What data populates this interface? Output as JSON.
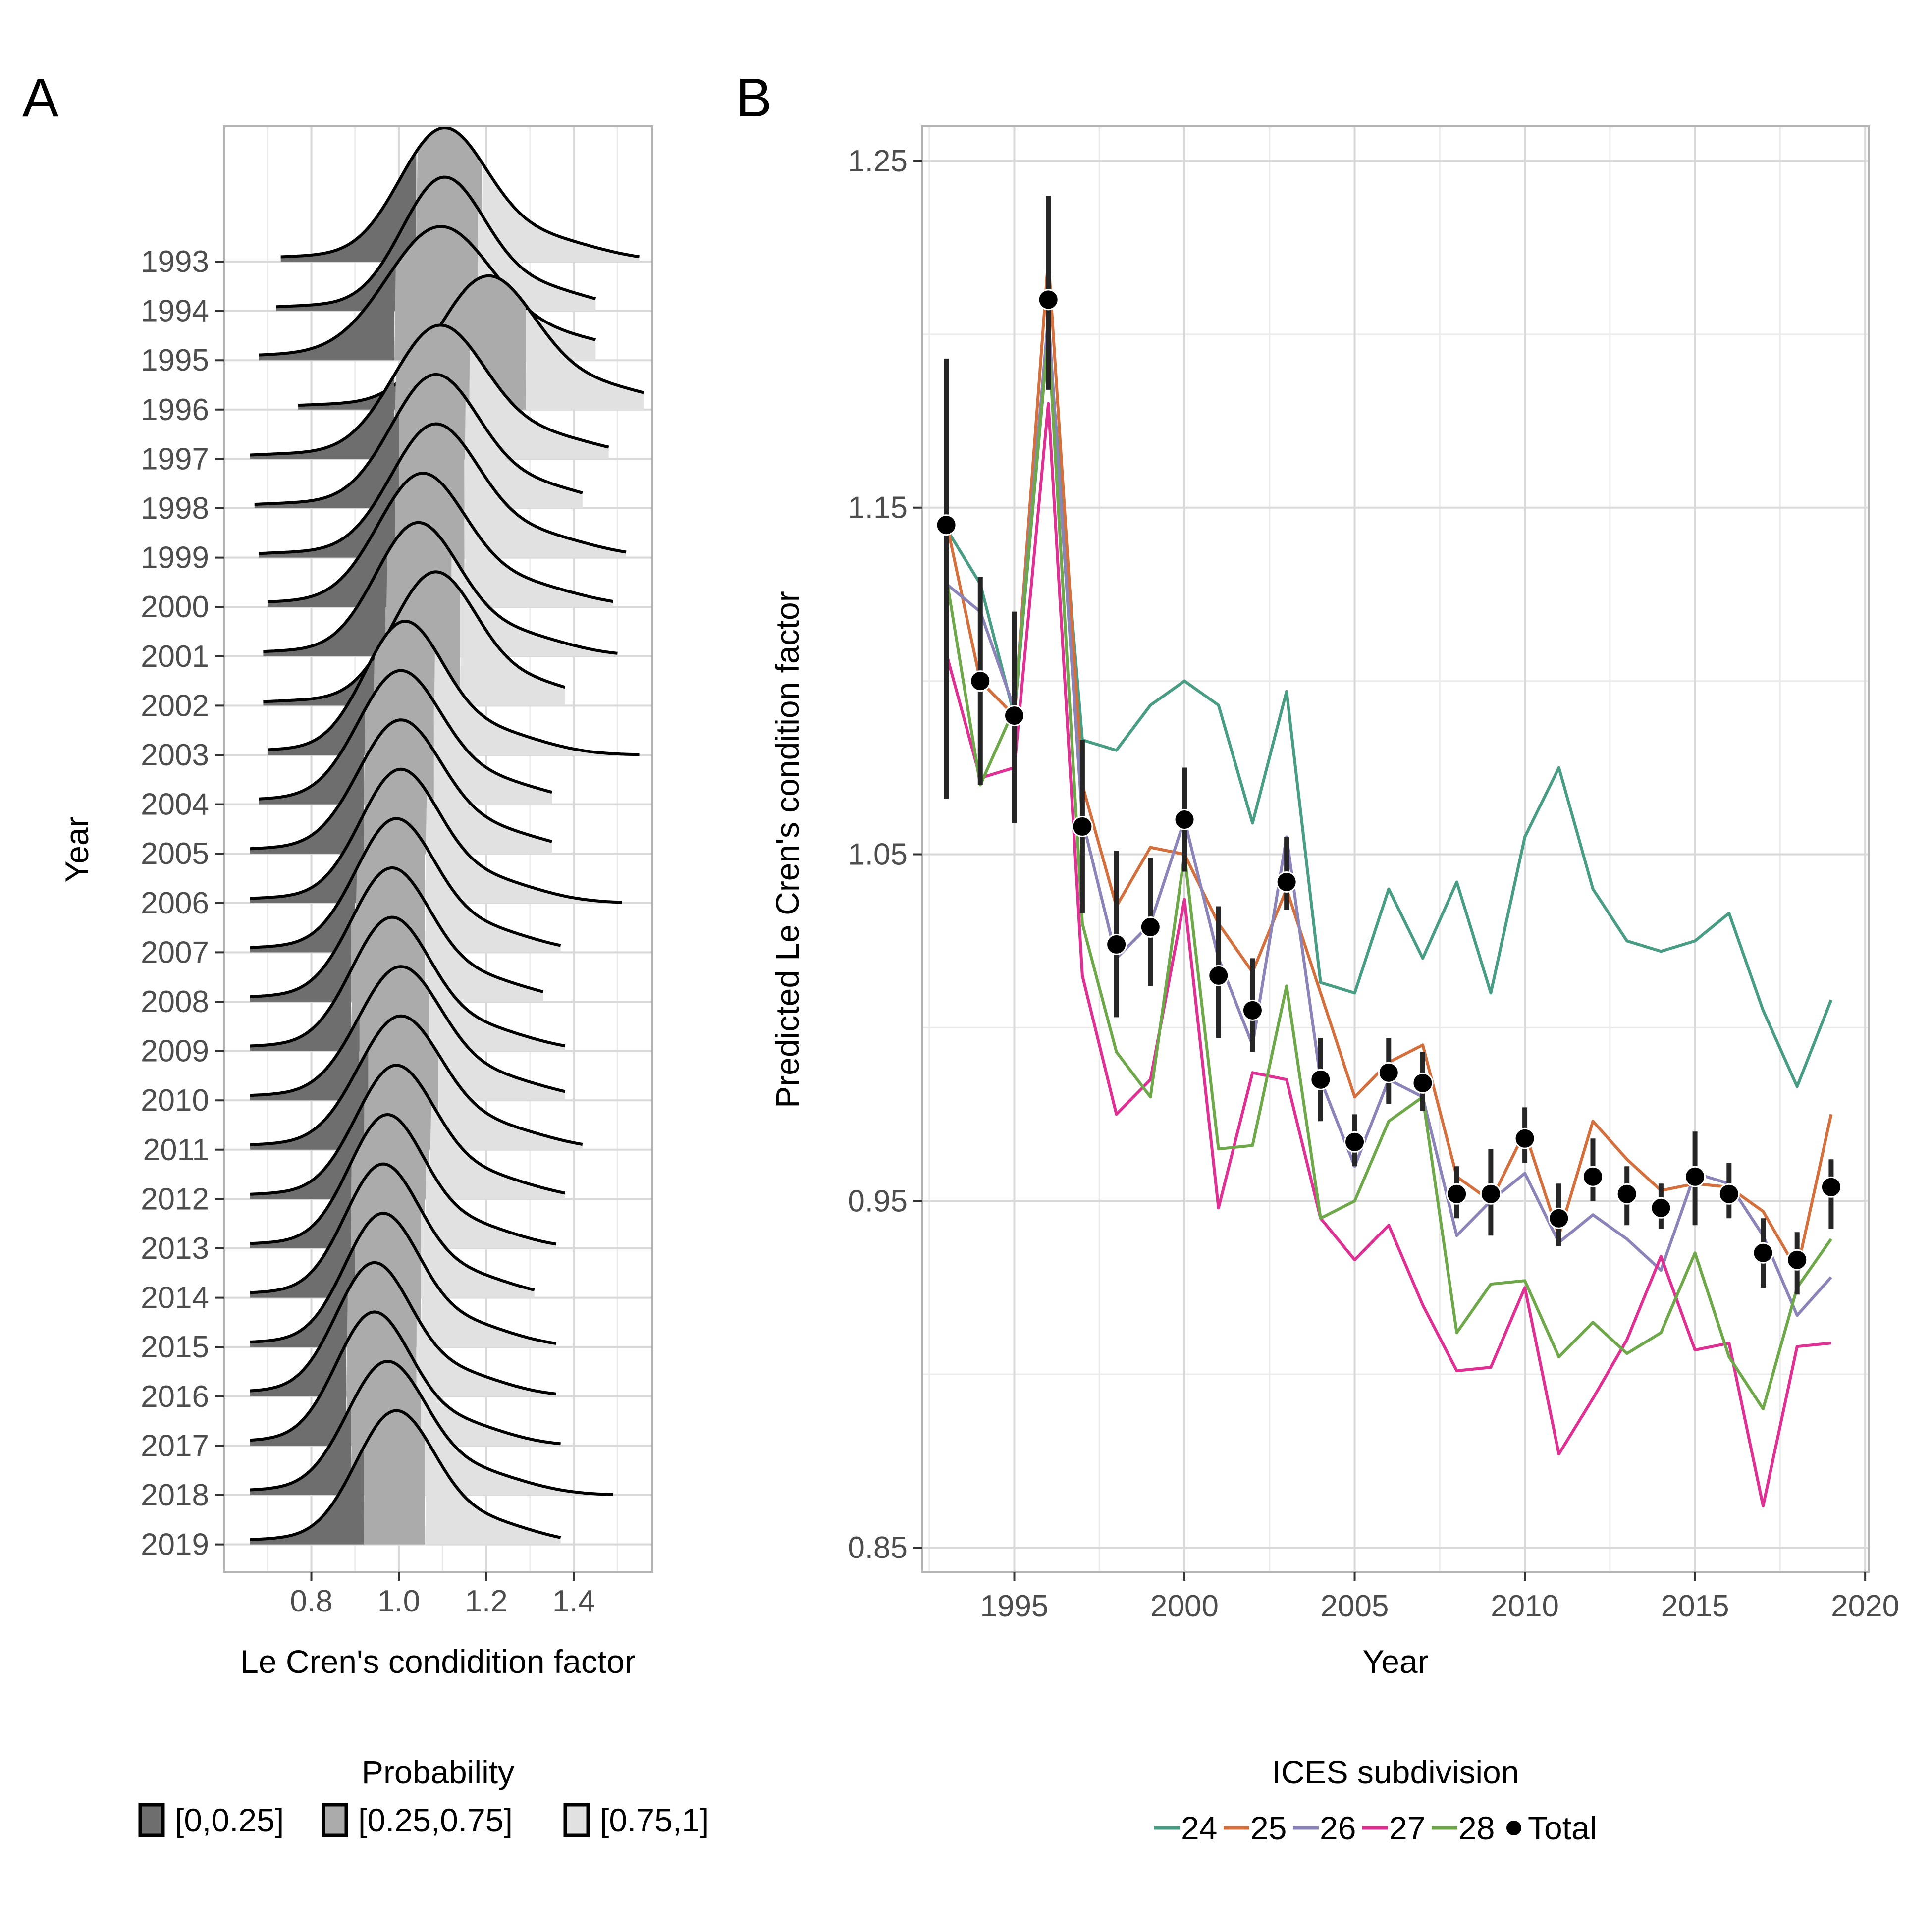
{
  "panels": [
    {
      "letter": "A"
    },
    {
      "letter": "B"
    }
  ],
  "chart_data": [
    {
      "type": "ridgeline",
      "panel_label": "A",
      "xlabel": "Le Cren's condidition factor",
      "ylabel": "Year",
      "xlim": [
        0.6,
        1.58
      ],
      "x_ticks": [
        0.8,
        1.0,
        1.2,
        1.4
      ],
      "x_tick_labels": [
        "0.8",
        "1.0",
        "1.2",
        "1.4"
      ],
      "years": [
        1993,
        1994,
        1995,
        1996,
        1997,
        1998,
        1999,
        2000,
        2001,
        2002,
        2003,
        2004,
        2005,
        2006,
        2007,
        2008,
        2009,
        2010,
        2011,
        2012,
        2013,
        2014,
        2015,
        2016,
        2017,
        2018,
        2019
      ],
      "year_labels": [
        "1993",
        "1994",
        "1995",
        "1996",
        "1997",
        "1998",
        "1999",
        "2000",
        "2001",
        "2002",
        "2003",
        "2004",
        "2005",
        "2006",
        "2007",
        "2008",
        "2009",
        "2010",
        "2011",
        "2012",
        "2013",
        "2014",
        "2015",
        "2016",
        "2017",
        "2018",
        "2019"
      ],
      "distributions": [
        {
          "min": 0.73,
          "max": 1.55,
          "mode": 1.1,
          "q25": 1.04,
          "q75": 1.19,
          "width": 0.1
        },
        {
          "min": 0.72,
          "max": 1.45,
          "mode": 1.1,
          "q25": 1.04,
          "q75": 1.18,
          "width": 0.095
        },
        {
          "min": 0.68,
          "max": 1.45,
          "mode": 1.09,
          "q25": 0.99,
          "q75": 1.18,
          "width": 0.12
        },
        {
          "min": 0.77,
          "max": 1.56,
          "mode": 1.2,
          "q25": 1.09,
          "q75": 1.29,
          "width": 0.11
        },
        {
          "min": 0.66,
          "max": 1.48,
          "mode": 1.09,
          "q25": 0.99,
          "q75": 1.16,
          "width": 0.105
        },
        {
          "min": 0.67,
          "max": 1.42,
          "mode": 1.08,
          "q25": 1.0,
          "q75": 1.15,
          "width": 0.1
        },
        {
          "min": 0.68,
          "max": 1.52,
          "mode": 1.08,
          "q25": 1.0,
          "q75": 1.15,
          "width": 0.1
        },
        {
          "min": 0.7,
          "max": 1.49,
          "mode": 1.05,
          "q25": 0.99,
          "q75": 1.15,
          "width": 0.1
        },
        {
          "min": 0.69,
          "max": 1.5,
          "mode": 1.04,
          "q25": 0.97,
          "q75": 1.12,
          "width": 0.095
        },
        {
          "min": 0.69,
          "max": 1.38,
          "mode": 1.08,
          "q25": 0.99,
          "q75": 1.14,
          "width": 0.095
        },
        {
          "min": 0.7,
          "max": 1.55,
          "mode": 1.01,
          "q25": 0.94,
          "q75": 1.08,
          "width": 0.09
        },
        {
          "min": 0.68,
          "max": 1.35,
          "mode": 1.0,
          "q25": 0.92,
          "q75": 1.08,
          "width": 0.095
        },
        {
          "min": 0.66,
          "max": 1.35,
          "mode": 1.0,
          "q25": 0.92,
          "q75": 1.08,
          "width": 0.095
        },
        {
          "min": 0.66,
          "max": 1.51,
          "mode": 1.0,
          "q25": 0.92,
          "q75": 1.06,
          "width": 0.09
        },
        {
          "min": 0.66,
          "max": 1.37,
          "mode": 0.99,
          "q25": 0.9,
          "q75": 1.06,
          "width": 0.09
        },
        {
          "min": 0.66,
          "max": 1.33,
          "mode": 0.98,
          "q25": 0.89,
          "q75": 1.06,
          "width": 0.09
        },
        {
          "min": 0.66,
          "max": 1.38,
          "mode": 0.98,
          "q25": 0.89,
          "q75": 1.06,
          "width": 0.09
        },
        {
          "min": 0.66,
          "max": 1.38,
          "mode": 1.0,
          "q25": 0.91,
          "q75": 1.07,
          "width": 0.095
        },
        {
          "min": 0.66,
          "max": 1.42,
          "mode": 1.0,
          "q25": 0.93,
          "q75": 1.09,
          "width": 0.095
        },
        {
          "min": 0.66,
          "max": 1.38,
          "mode": 0.99,
          "q25": 0.92,
          "q75": 1.07,
          "width": 0.09
        },
        {
          "min": 0.66,
          "max": 1.36,
          "mode": 0.97,
          "q25": 0.89,
          "q75": 1.06,
          "width": 0.085
        },
        {
          "min": 0.66,
          "max": 1.31,
          "mode": 0.96,
          "q25": 0.89,
          "q75": 1.05,
          "width": 0.085
        },
        {
          "min": 0.66,
          "max": 1.36,
          "mode": 0.96,
          "q25": 0.9,
          "q75": 1.05,
          "width": 0.085
        },
        {
          "min": 0.66,
          "max": 1.36,
          "mode": 0.94,
          "q25": 0.88,
          "q75": 1.04,
          "width": 0.085
        },
        {
          "min": 0.66,
          "max": 1.37,
          "mode": 0.94,
          "q25": 0.88,
          "q75": 1.04,
          "width": 0.085
        },
        {
          "min": 0.66,
          "max": 1.49,
          "mode": 0.97,
          "q25": 0.89,
          "q75": 1.05,
          "width": 0.09
        },
        {
          "min": 0.66,
          "max": 1.37,
          "mode": 0.99,
          "q25": 0.92,
          "q75": 1.06,
          "width": 0.09
        }
      ],
      "legend_title": "Probability",
      "legend_position": "bottom",
      "legend": [
        {
          "label": "[0,0.25]",
          "color": "#6e6e6e"
        },
        {
          "label": "[0.25,0.75]",
          "color": "#ababab"
        },
        {
          "label": "[0.75,1]",
          "color": "#e1e1e1"
        }
      ]
    },
    {
      "type": "line",
      "panel_label": "B",
      "xlabel": "Year",
      "ylabel": "Predicted Le Cren's condition factor",
      "xlim": [
        1992.3,
        2020.1
      ],
      "ylim": [
        0.843,
        1.26
      ],
      "x_ticks": [
        1995,
        2000,
        2005,
        2010,
        2015,
        2020
      ],
      "x_tick_labels": [
        "1995",
        "2000",
        "2005",
        "2010",
        "2015",
        "2020"
      ],
      "y_ticks": [
        0.85,
        0.95,
        1.05,
        1.15,
        1.25
      ],
      "y_tick_labels": [
        "0.85",
        "0.95",
        "1.05",
        "1.15",
        "1.25"
      ],
      "grid": true,
      "x": [
        1993,
        1994,
        1995,
        1996,
        1997,
        1998,
        1999,
        2000,
        2001,
        2002,
        2003,
        2004,
        2005,
        2006,
        2007,
        2008,
        2009,
        2010,
        2011,
        2012,
        2013,
        2014,
        2015,
        2016,
        2017,
        2018,
        2019
      ],
      "series": [
        {
          "name": "24",
          "color": "#4a9d85",
          "values": [
            1.144,
            1.128,
            1.09,
            1.2,
            1.083,
            1.08,
            1.093,
            1.1,
            1.093,
            1.059,
            1.097,
            1.013,
            1.01,
            1.04,
            1.02,
            1.042,
            1.01,
            1.055,
            1.075,
            1.04,
            1.025,
            1.022,
            1.025,
            1.033,
            1.005,
            0.983,
            1.008
          ]
        },
        {
          "name": "25",
          "color": "#d4703e",
          "values": [
            1.146,
            1.1,
            1.09,
            1.222,
            1.07,
            1.035,
            1.052,
            1.05,
            1.03,
            1.016,
            1.04,
            1.01,
            0.98,
            0.99,
            0.995,
            0.957,
            0.95,
            0.97,
            0.94,
            0.973,
            0.962,
            0.953,
            0.955,
            0.954,
            0.947,
            0.93,
            0.975
          ]
        },
        {
          "name": "26",
          "color": "#8a84b8",
          "values": [
            1.128,
            1.12,
            1.092,
            1.205,
            1.06,
            1.02,
            1.03,
            1.06,
            1.02,
            0.995,
            1.055,
            0.985,
            0.96,
            0.985,
            0.98,
            0.94,
            0.95,
            0.958,
            0.938,
            0.946,
            0.939,
            0.93,
            0.958,
            0.955,
            0.94,
            0.917,
            0.928
          ]
        },
        {
          "name": "27",
          "color": "#df3193",
          "values": [
            1.108,
            1.072,
            1.075,
            1.18,
            1.015,
            0.975,
            0.985,
            1.037,
            0.948,
            0.987,
            0.985,
            0.945,
            0.933,
            0.943,
            0.92,
            0.901,
            0.902,
            0.925,
            0.877,
            0.893,
            0.91,
            0.934,
            0.907,
            0.909,
            0.862,
            0.908,
            0.909
          ]
        },
        {
          "name": "28",
          "color": "#6ea84a",
          "values": [
            1.13,
            1.07,
            1.092,
            1.2,
            1.03,
            0.993,
            0.98,
            1.05,
            0.965,
            0.966,
            1.012,
            0.945,
            0.95,
            0.973,
            0.98,
            0.912,
            0.926,
            0.927,
            0.905,
            0.915,
            0.906,
            0.912,
            0.935,
            0.905,
            0.89,
            0.925,
            0.939
          ]
        }
      ],
      "total": {
        "name": "Total",
        "color": "#000000",
        "values": [
          1.145,
          1.1,
          1.09,
          1.21,
          1.058,
          1.024,
          1.029,
          1.06,
          1.015,
          1.005,
          1.042,
          0.985,
          0.967,
          0.987,
          0.984,
          0.952,
          0.952,
          0.968,
          0.945,
          0.957,
          0.952,
          0.948,
          0.957,
          0.952,
          0.935,
          0.933,
          0.954
        ],
        "ci_low": [
          1.066,
          1.07,
          1.059,
          1.184,
          1.033,
          1.003,
          1.012,
          1.045,
          0.997,
          0.993,
          1.034,
          0.973,
          0.96,
          0.978,
          0.976,
          0.945,
          0.94,
          0.961,
          0.937,
          0.95,
          0.943,
          0.942,
          0.943,
          0.945,
          0.925,
          0.923,
          0.942
        ],
        "ci_high": [
          1.193,
          1.13,
          1.12,
          1.24,
          1.083,
          1.051,
          1.049,
          1.075,
          1.035,
          1.02,
          1.055,
          0.997,
          0.975,
          0.997,
          0.993,
          0.96,
          0.965,
          0.977,
          0.955,
          0.968,
          0.96,
          0.955,
          0.97,
          0.961,
          0.945,
          0.941,
          0.962
        ]
      },
      "legend_title": "ICES subdivision",
      "legend_position": "bottom",
      "legend": [
        {
          "label": "24",
          "color": "#4a9d85",
          "kind": "line"
        },
        {
          "label": "25",
          "color": "#d4703e",
          "kind": "line"
        },
        {
          "label": "26",
          "color": "#8a84b8",
          "kind": "line"
        },
        {
          "label": "27",
          "color": "#df3193",
          "kind": "line"
        },
        {
          "label": "28",
          "color": "#6ea84a",
          "kind": "line"
        },
        {
          "label": "Total",
          "color": "#000000",
          "kind": "point"
        }
      ]
    }
  ]
}
